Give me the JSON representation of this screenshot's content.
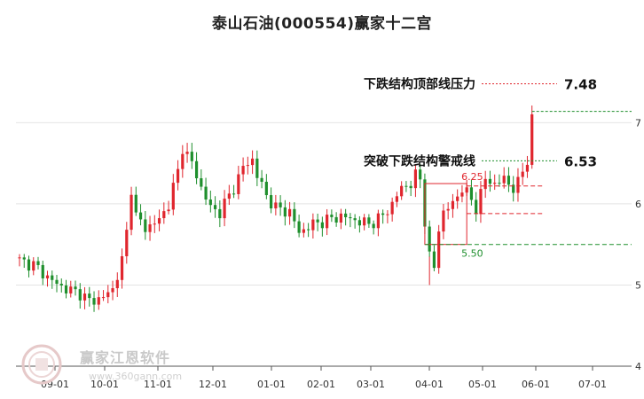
{
  "title": "泰山石油(000554)赢家十二宫",
  "watermark": {
    "brand": "赢家江恩软件",
    "url": "www.360gann.com"
  },
  "chart_data": {
    "type": "candlestick",
    "x_ticks": [
      "09-01",
      "10-01",
      "11-01",
      "12-01",
      "01-01",
      "02-01",
      "03-01",
      "04-01",
      "05-01",
      "06-01",
      "07-01"
    ],
    "y_ticks": [
      4,
      5,
      6,
      7
    ],
    "ylim": [
      4.0,
      7.9
    ],
    "grid": true,
    "colors": {
      "up": "#e0262e",
      "down": "#1f8f2d",
      "resistance": "#e0262e",
      "support": "#1f8f2d"
    },
    "close_path": [
      [
        0,
        5.3
      ],
      [
        3,
        5.25
      ],
      [
        7,
        5.05
      ],
      [
        10,
        4.95
      ],
      [
        13,
        4.9
      ],
      [
        15,
        4.8
      ],
      [
        18,
        4.85
      ],
      [
        20,
        4.95
      ],
      [
        22,
        5.3
      ],
      [
        23,
        5.65
      ],
      [
        24,
        6.2
      ],
      [
        25,
        5.85
      ],
      [
        27,
        5.7
      ],
      [
        30,
        5.8
      ],
      [
        32,
        6.0
      ],
      [
        34,
        6.4
      ],
      [
        35,
        6.7
      ],
      [
        37,
        6.5
      ],
      [
        39,
        6.2
      ],
      [
        41,
        5.95
      ],
      [
        43,
        5.9
      ],
      [
        46,
        6.2
      ],
      [
        48,
        6.45
      ],
      [
        50,
        6.55
      ],
      [
        51,
        6.35
      ],
      [
        53,
        6.1
      ],
      [
        55,
        5.95
      ],
      [
        58,
        5.9
      ],
      [
        60,
        5.65
      ],
      [
        63,
        5.75
      ],
      [
        66,
        5.8
      ],
      [
        69,
        5.85
      ],
      [
        72,
        5.8
      ],
      [
        75,
        5.75
      ],
      [
        78,
        5.85
      ],
      [
        80,
        6.0
      ],
      [
        82,
        6.2
      ],
      [
        84,
        6.25
      ],
      [
        85,
        6.35
      ],
      [
        86,
        6.3
      ],
      [
        87,
        5.8
      ],
      [
        88,
        5.35
      ],
      [
        89,
        5.2
      ],
      [
        90,
        5.7
      ],
      [
        91,
        5.9
      ],
      [
        93,
        6.0
      ],
      [
        95,
        6.2
      ],
      [
        97,
        6.05
      ],
      [
        98,
        5.95
      ],
      [
        100,
        6.3
      ],
      [
        102,
        6.25
      ],
      [
        104,
        6.3
      ],
      [
        105,
        6.25
      ],
      [
        106,
        6.2
      ],
      [
        107,
        6.25
      ],
      [
        108,
        6.4
      ],
      [
        109,
        6.55
      ],
      [
        110,
        7.05
      ]
    ],
    "levels": [
      {
        "name": "下跌结构顶部线压力",
        "value": 7.48,
        "label": "7.48",
        "color": "resistance"
      },
      {
        "name": "突破下跌结构警戒线",
        "value": 6.53,
        "label": "6.53",
        "color": "support"
      }
    ],
    "top_line": 7.14,
    "box": {
      "from_day": 87,
      "to_day": 96,
      "high": 6.25,
      "low": 5.5,
      "high_label": "6.25",
      "low_label": "5.50",
      "mid_dashed": 5.88,
      "high_dashed": 6.22
    }
  }
}
